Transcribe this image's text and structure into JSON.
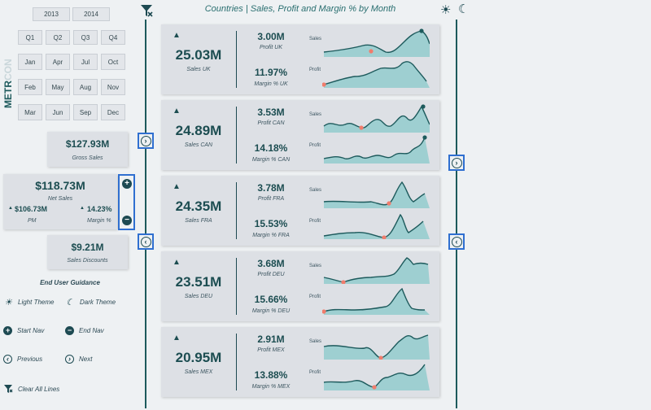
{
  "header": {
    "title": "Countries | Sales, Profit and Margin % by Month"
  },
  "brand": {
    "metr": "METR",
    "con": "CON"
  },
  "years": [
    "2013",
    "2014"
  ],
  "quarters": [
    "Q1",
    "Q2",
    "Q3",
    "Q4"
  ],
  "months": [
    "Jan",
    "Apr",
    "Jul",
    "Oct",
    "Feb",
    "May",
    "Aug",
    "Nov",
    "Mar",
    "Jun",
    "Sep",
    "Dec"
  ],
  "kpis": {
    "gross_sales": {
      "value": "$127.93M",
      "label": "Gross Sales"
    },
    "net_sales": {
      "value": "$118.73M",
      "label": "Net Sales",
      "pm_value": "$106.73M",
      "pm_label": "PM",
      "margin_value": "14.23%",
      "margin_label": "Margin %"
    },
    "discounts": {
      "value": "$9.21M",
      "label": "Sales Discounts"
    }
  },
  "guidance": {
    "title": "End User Guidance",
    "light_theme": "Light Theme",
    "dark_theme": "Dark Theme",
    "start_nav": "Start Nav",
    "end_nav": "End Nav",
    "previous": "Previous",
    "next": "Next",
    "clear_all": "Clear All Lines"
  },
  "sparkline_labels": {
    "sales": "Sales",
    "profit": "Profit"
  },
  "colors": {
    "accent": "#1d5a5c",
    "fill": "#8fcbcc",
    "marker_low": "#f07c6c",
    "nav_border": "#2f6fd0"
  },
  "countries": [
    {
      "sales": "25.03M",
      "sales_label": "Sales UK",
      "profit": "3.00M",
      "profit_label": "Profit UK",
      "margin": "11.97%",
      "margin_label": "Margin % UK"
    },
    {
      "sales": "24.89M",
      "sales_label": "Sales CAN",
      "profit": "3.53M",
      "profit_label": "Profit CAN",
      "margin": "14.18%",
      "margin_label": "Margin % CAN"
    },
    {
      "sales": "24.35M",
      "sales_label": "Sales FRA",
      "profit": "3.78M",
      "profit_label": "Profit FRA",
      "margin": "15.53%",
      "margin_label": "Margin % FRA"
    },
    {
      "sales": "23.51M",
      "sales_label": "Sales DEU",
      "profit": "3.68M",
      "profit_label": "Profit DEU",
      "margin": "15.66%",
      "margin_label": "Margin % DEU"
    },
    {
      "sales": "20.95M",
      "sales_label": "Sales MEX",
      "profit": "2.91M",
      "profit_label": "Profit MEX",
      "margin": "13.88%",
      "margin_label": "Margin % MEX"
    }
  ]
}
